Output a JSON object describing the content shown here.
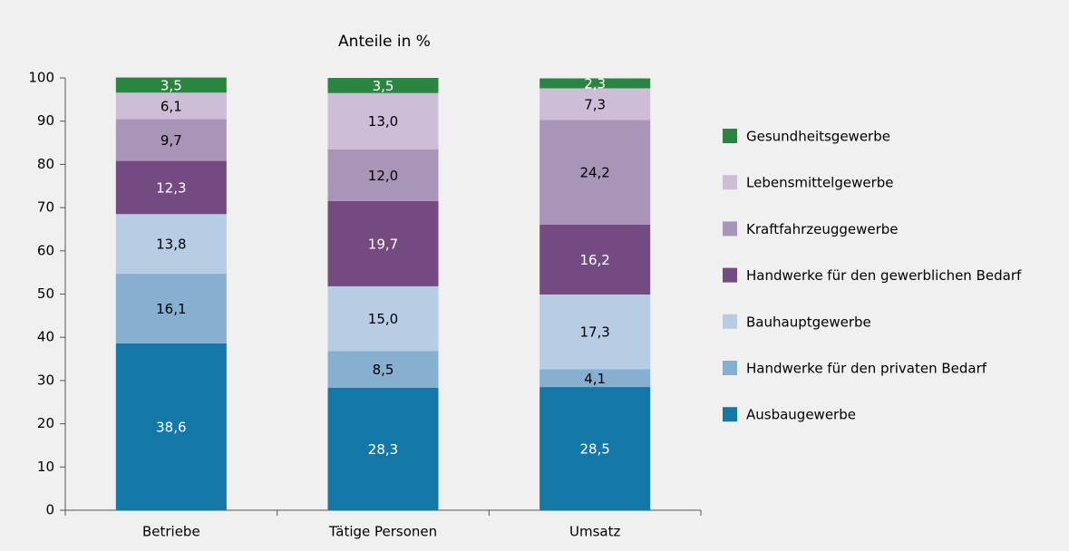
{
  "chart_data": {
    "type": "stacked_bar",
    "title": "Anteile in %",
    "categories": [
      "Betriebe",
      "Tätige Personen",
      "Umsatz"
    ],
    "series": [
      {
        "name": "Ausbaugewerbe",
        "color": "#1477a8",
        "values": [
          38.6,
          28.3,
          28.5
        ],
        "value_labels": [
          "38,6",
          "28,3",
          "28,5"
        ]
      },
      {
        "name": "Handwerke für den privaten Bedarf",
        "color": "#86afd0",
        "values": [
          16.1,
          8.5,
          4.1
        ],
        "value_labels": [
          "16,1",
          "8,5",
          "4,1"
        ]
      },
      {
        "name": "Bauhauptgewerbe",
        "color": "#b6cde3",
        "values": [
          13.8,
          15.0,
          17.3
        ],
        "value_labels": [
          "13,8",
          "15,0",
          "17,3"
        ]
      },
      {
        "name": "Handwerke für den gewerblichen Bedarf",
        "color": "#744b80",
        "values": [
          12.3,
          19.7,
          16.2
        ],
        "value_labels": [
          "12,3",
          "19,7",
          "16,2"
        ]
      },
      {
        "name": "Kraftfahrzeuggewerbe",
        "color": "#a995b8",
        "values": [
          9.7,
          12.0,
          24.2
        ],
        "value_labels": [
          "9,7",
          "12,0",
          "24,2"
        ]
      },
      {
        "name": "Lebensmittelgewerbe",
        "color": "#cdbdd6",
        "values": [
          6.1,
          13.0,
          7.3
        ],
        "value_labels": [
          "6,1",
          "13,0",
          "7,3"
        ]
      },
      {
        "name": "Gesundheitsgewerbe",
        "color": "#2a8540",
        "values": [
          3.5,
          3.5,
          2.3
        ],
        "value_labels": [
          "3,5",
          "3,5",
          "2,3"
        ]
      }
    ],
    "ylim": [
      0,
      100
    ],
    "yticks": [
      0,
      10,
      20,
      30,
      40,
      50,
      60,
      70,
      80,
      90,
      100
    ],
    "legend": "right"
  }
}
